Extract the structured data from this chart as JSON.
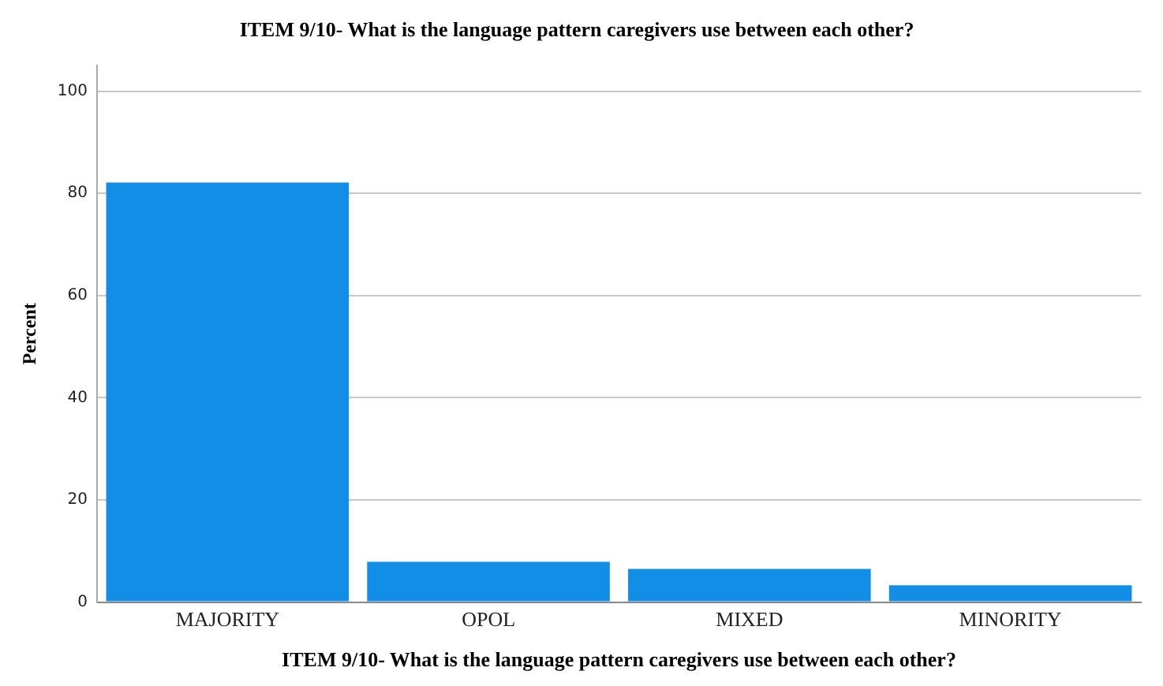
{
  "chart_data": {
    "type": "bar",
    "title": "ITEM 9/10- What is the language pattern caregivers use between each other?",
    "xlabel": "ITEM 9/10- What is the language pattern caregivers use between each other?",
    "ylabel": "Percent",
    "categories": [
      "MAJORITY",
      "OPOL",
      "MIXED",
      "MINORITY"
    ],
    "values": [
      82.1,
      7.9,
      6.5,
      3.3
    ],
    "color": "#128ee6",
    "ylim": [
      0,
      105
    ],
    "yticks": [
      0,
      20,
      40,
      60,
      80,
      100
    ],
    "grid": "y"
  }
}
